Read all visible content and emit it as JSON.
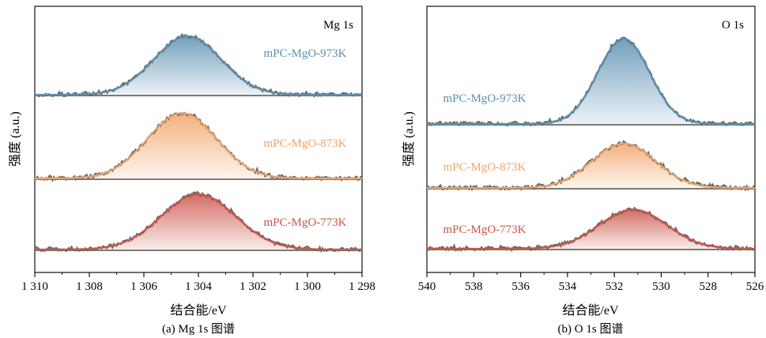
{
  "figure": {
    "panels": [
      {
        "id": "a",
        "panel_label": "Mg 1s",
        "caption": "(a) Mg 1s 图谱",
        "xlabel": "结合能/eV",
        "ylabel": "强度 (a.u.)",
        "x_ticks": [
          "1 310",
          "1 308",
          "1 306",
          "1 304",
          "1 302",
          "1 300",
          "1 298"
        ]
      },
      {
        "id": "b",
        "panel_label": "O 1s",
        "caption": "(b) O 1s 图谱",
        "xlabel": "结合能/eV",
        "ylabel": "强度 (a.u.)",
        "x_ticks": [
          "540",
          "538",
          "536",
          "534",
          "532",
          "530",
          "528",
          "526"
        ]
      }
    ]
  },
  "chart_data": [
    {
      "type": "area",
      "title": "Mg 1s",
      "xlabel": "结合能/eV",
      "ylabel": "强度 (a.u.)",
      "xlim": [
        1310,
        1298
      ],
      "x_reversed": true,
      "grid": false,
      "series": [
        {
          "name": "mPC-MgO-973K",
          "color": "#5b8fb0",
          "peak_center": 1304.4,
          "fwhm": 2.9,
          "relative_height": 0.7,
          "offset": 2
        },
        {
          "name": "mPC-MgO-873K",
          "color": "#f0a468",
          "peak_center": 1304.6,
          "fwhm": 3.0,
          "relative_height": 0.78,
          "offset": 1
        },
        {
          "name": "mPC-MgO-773K",
          "color": "#cc5549",
          "peak_center": 1304.0,
          "fwhm": 3.2,
          "relative_height": 0.66,
          "offset": 0
        }
      ]
    },
    {
      "type": "area",
      "title": "O 1s",
      "xlabel": "结合能/eV",
      "ylabel": "强度 (a.u.)",
      "xlim": [
        540,
        526
      ],
      "x_reversed": true,
      "grid": false,
      "series": [
        {
          "name": "mPC-MgO-973K",
          "color": "#5b8fb0",
          "peak_center": 531.6,
          "fwhm": 2.6,
          "relative_height": 1.0,
          "offset": 2
        },
        {
          "name": "mPC-MgO-873K",
          "color": "#f0a468",
          "peak_center": 531.6,
          "fwhm": 3.2,
          "relative_height": 0.52,
          "offset": 1
        },
        {
          "name": "mPC-MgO-773K",
          "color": "#cc5549",
          "peak_center": 531.2,
          "fwhm": 3.4,
          "relative_height": 0.46,
          "offset": 0
        }
      ]
    }
  ]
}
